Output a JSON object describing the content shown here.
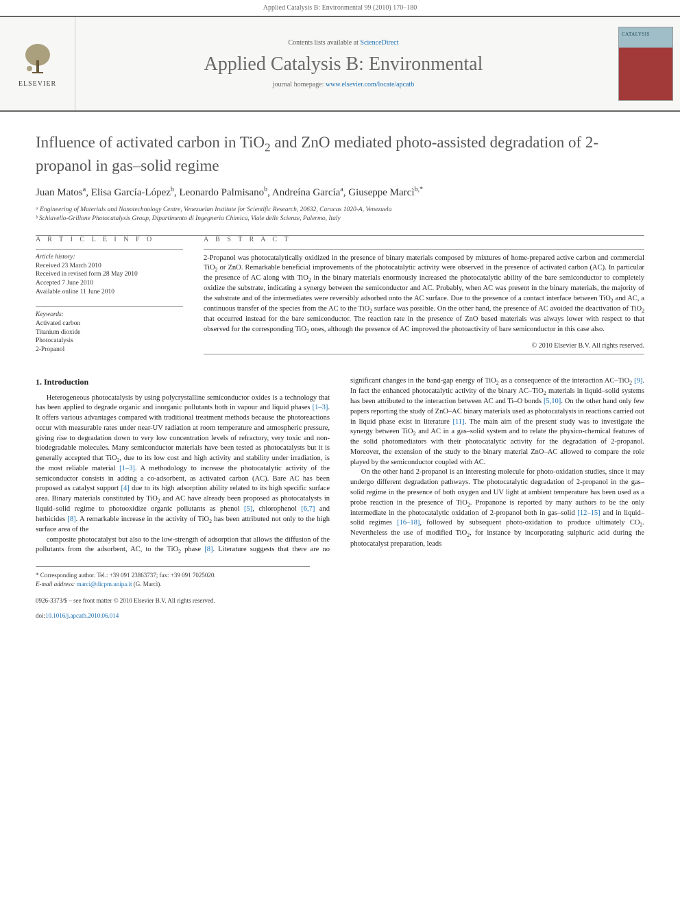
{
  "colors": {
    "link": "#1a6fb3",
    "text": "#222222",
    "muted": "#666666",
    "rule": "#888888",
    "cover_top": "#9fbec8",
    "cover_bottom": "#a23a3a"
  },
  "header": {
    "citation": "Applied Catalysis B: Environmental 99 (2010) 170–180"
  },
  "masthead": {
    "publisher_logo_label": "ELSEVIER",
    "contents_prefix": "Contents lists available at ",
    "contents_link": "ScienceDirect",
    "journal_name": "Applied Catalysis B: Environmental",
    "homepage_prefix": "journal homepage: ",
    "homepage_url": "www.elsevier.com/locate/apcatb",
    "cover_label": "CATALYSIS"
  },
  "article": {
    "title": "Influence of activated carbon in TiO₂ and ZnO mediated photo-assisted degradation of 2-propanol in gas–solid regime",
    "authors_html": "Juan Matos<sup>a</sup>, Elisa García-López<sup>b</sup>, Leonardo Palmisano<sup>b</sup>, Andreína García<sup>a</sup>, Giuseppe Marcì<sup>b,*</sup>",
    "affiliations": [
      "ᵃ Engineering of Materials and Nanotechnology Centre, Venezuelan Institute for Scientific Research, 20632, Caracas 1020-A, Venezuela",
      "ᵇ Schiavello-Grillone Photocatalysis Group, Dipartimento di Ingegneria Chimica, Viale delle Scienze, Palermo, Italy"
    ]
  },
  "article_info": {
    "heading": "A R T I C L E   I N F O",
    "history_label": "Article history:",
    "history": [
      "Received 23 March 2010",
      "Received in revised form 28 May 2010",
      "Accepted 7 June 2010",
      "Available online 11 June 2010"
    ],
    "keywords_label": "Keywords:",
    "keywords": [
      "Activated carbon",
      "Titanium dioxide",
      "Photocatalysis",
      "2-Propanol"
    ]
  },
  "abstract": {
    "heading": "A B S T R A C T",
    "text": "2-Propanol was photocatalytically oxidized in the presence of binary materials composed by mixtures of home-prepared active carbon and commercial TiO₂ or ZnO. Remarkable beneficial improvements of the photocatalytic activity were observed in the presence of activated carbon (AC). In particular the presence of AC along with TiO₂ in the binary materials enormously increased the photocatalytic ability of the bare semiconductor to completely oxidize the substrate, indicating a synergy between the semiconductor and AC. Probably, when AC was present in the binary materials, the majority of the substrate and of the intermediates were reversibly adsorbed onto the AC surface. Due to the presence of a contact interface between TiO₂ and AC, a continuous transfer of the species from the AC to the TiO₂ surface was possible. On the other hand, the presence of AC avoided the deactivation of TiO₂ that occurred instead for the bare semiconductor. The reaction rate in the presence of ZnO based materials was always lower with respect to that observed for the corresponding TiO₂ ones, although the presence of AC improved the photoactivity of bare semiconductor in this case also.",
    "copyright": "© 2010 Elsevier B.V. All rights reserved."
  },
  "body": {
    "section_number": "1.",
    "section_title": "Introduction",
    "paragraphs": [
      "Heterogeneous photocatalysis by using polycrystalline semiconductor oxides is a technology that has been applied to degrade organic and inorganic pollutants both in vapour and liquid phases [1–3]. It offers various advantages compared with traditional treatment methods because the photoreactions occur with measurable rates under near-UV radiation at room temperature and atmospheric pressure, giving rise to degradation down to very low concentration levels of refractory, very toxic and non-biodegradable molecules. Many semiconductor materials have been tested as photocatalysts but it is generally accepted that TiO₂, due to its low cost and high activity and stability under irradiation, is the most reliable material [1–3]. A methodology to increase the photocatalytic activity of the semiconductor consists in adding a co-adsorbent, as activated carbon (AC). Bare AC has been proposed as catalyst support [4] due to its high adsorption ability related to its high specific surface area. Binary materials constituted by TiO₂ and AC have already been proposed as photocatalysts in liquid–solid regime to photooxidize organic pollutants as phenol [5], chlorophenol [6,7] and herbicides [8]. A remarkable increase in the activity of TiO₂ has been attributed not only to the high surface area of the",
      "composite photocatalyst but also to the low-strength of adsorption that allows the diffusion of the pollutants from the adsorbent, AC, to the TiO₂ phase [8]. Literature suggests that there are no significant changes in the band-gap energy of TiO₂ as a consequence of the interaction AC–TiO₂ [9]. In fact the enhanced photocatalytic activity of the binary AC–TiO₂ materials in liquid–solid systems has been attributed to the interaction between AC and Ti–O bonds [5,10]. On the other hand only few papers reporting the study of ZnO–AC binary materials used as photocatalysts in reactions carried out in liquid phase exist in literature [11]. The main aim of the present study was to investigate the synergy between TiO₂ and AC in a gas–solid system and to relate the physico-chemical features of the solid photomediators with their photocatalytic activity for the degradation of 2-propanol. Moreover, the extension of the study to the binary material ZnO–AC allowed to compare the role played by the semiconductor coupled with AC.",
      "On the other hand 2-propanol is an interesting molecule for photo-oxidation studies, since it may undergo different degradation pathways. The photocatalytic degradation of 2-propanol in the gas–solid regime in the presence of both oxygen and UV light at ambient temperature has been used as a probe reaction in the presence of TiO₂. Propanone is reported by many authors to be the only intermediate in the photocatalytic oxidation of 2-propanol both in gas–solid [12–15] and in liquid–solid regimes [16–18], followed by subsequent photo-oxidation to produce ultimately CO₂. Nevertheless the use of modified TiO₂, for instance by incorporating sulphuric acid during the photocatalyst preparation, leads"
    ],
    "ref_patterns": [
      "[1–3]",
      "[4]",
      "[5]",
      "[6,7]",
      "[8]",
      "[9]",
      "[5,10]",
      "[11]",
      "[12–15]",
      "[16–18]"
    ]
  },
  "footer": {
    "corresponding_label": "* Corresponding author. Tel.: +39 091 23863737; fax: +39 091 7025020.",
    "email_label": "E-mail address:",
    "email": "marci@dicpm.unipa.it",
    "email_name": "(G. Marcì).",
    "issn_line": "0926-3373/$ – see front matter © 2010 Elsevier B.V. All rights reserved.",
    "doi_label": "doi:",
    "doi": "10.1016/j.apcatb.2010.06.014"
  }
}
